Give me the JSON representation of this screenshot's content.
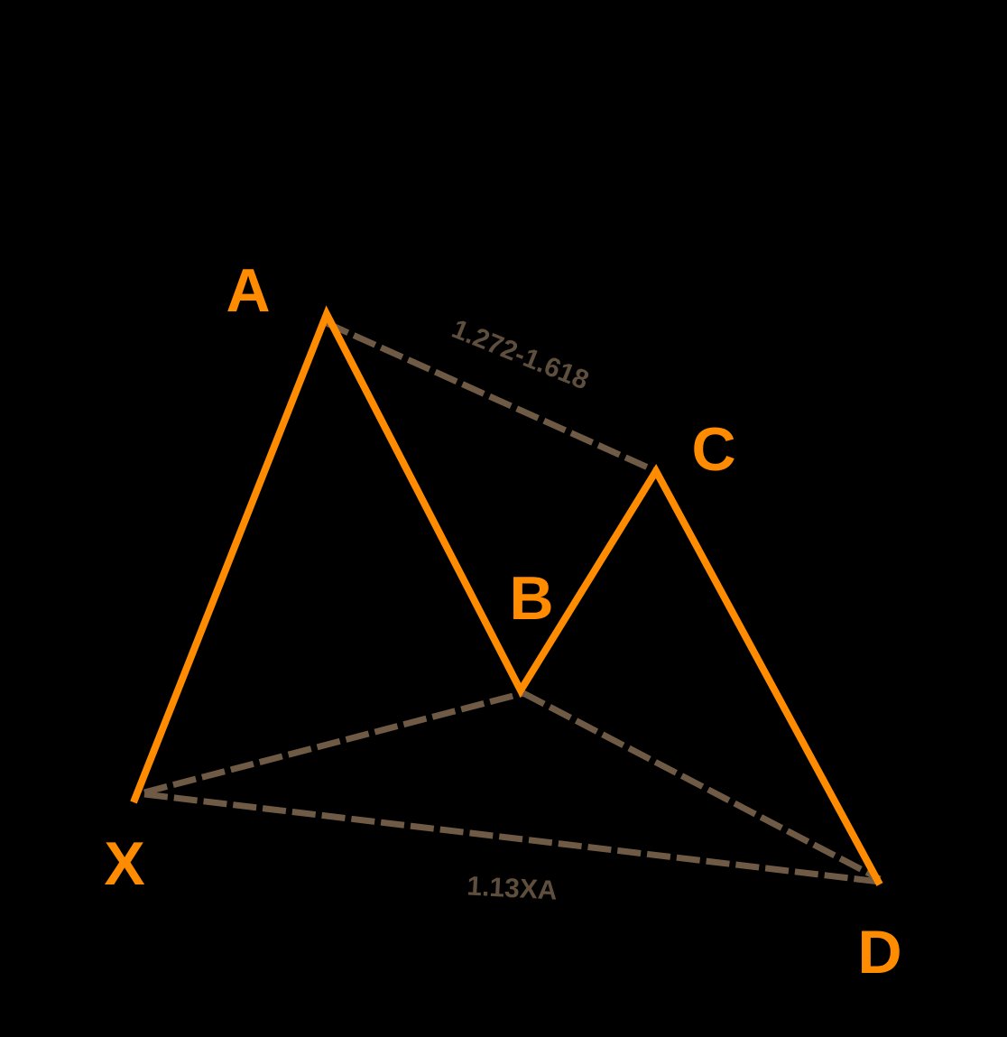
{
  "colors": {
    "background": "#000000",
    "pattern_line": "#ff8c00",
    "ratio_line": "#6e5a45",
    "point_label": "#ff8c00",
    "ratio_label": "#5e4e3d"
  },
  "points": {
    "X": "X",
    "A": "A",
    "B": "B",
    "C": "C",
    "D": "D"
  },
  "ratios": {
    "ac": "1.272-1.618",
    "xd": "1.13XA"
  }
}
